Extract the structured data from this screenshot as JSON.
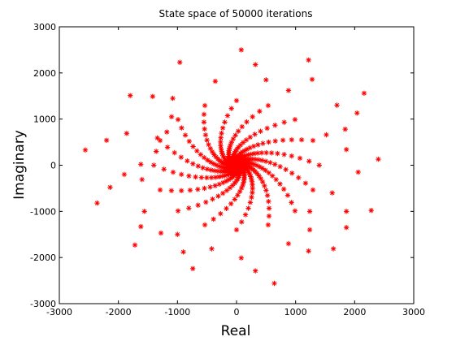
{
  "chart_data": {
    "type": "scatter",
    "title": "State space of 50000 iterations",
    "xlabel": "Real",
    "ylabel": "Imaginary",
    "xlim": [
      -3000,
      3000
    ],
    "ylim": [
      -3000,
      3000
    ],
    "xticks": [
      -3000,
      -2000,
      -1000,
      0,
      1000,
      2000,
      3000
    ],
    "yticks": [
      -3000,
      -2000,
      -1000,
      0,
      1000,
      2000,
      3000
    ],
    "xtick_labels": [
      "-3000",
      "-2000",
      "-1000",
      "0",
      "1000",
      "2000",
      "3000"
    ],
    "ytick_labels": [
      "-3000",
      "-2000",
      "-1000",
      "0",
      "1000",
      "2000",
      "3000"
    ],
    "grid": false,
    "marker": "asterisk",
    "color": "#ff0000",
    "spiral_arms": 16,
    "points": [
      [
        80,
        2500
      ],
      [
        320,
        2180
      ],
      [
        -960,
        2230
      ],
      [
        1220,
        2280
      ],
      [
        2160,
        1560
      ],
      [
        -1800,
        1510
      ],
      [
        -1420,
        1490
      ],
      [
        -1080,
        1450
      ],
      [
        -360,
        1820
      ],
      [
        500,
        1850
      ],
      [
        880,
        1620
      ],
      [
        1280,
        1860
      ],
      [
        2040,
        1130
      ],
      [
        2400,
        130
      ],
      [
        -2560,
        330
      ],
      [
        -2360,
        -820
      ],
      [
        -2200,
        540
      ],
      [
        -1620,
        20
      ],
      [
        -1600,
        -310
      ],
      [
        -1560,
        -1000
      ],
      [
        -1620,
        -1330
      ],
      [
        -1720,
        -1730
      ],
      [
        -1280,
        -1470
      ],
      [
        -1000,
        -1500
      ],
      [
        -900,
        -1880
      ],
      [
        -740,
        -2240
      ],
      [
        -420,
        -1810
      ],
      [
        80,
        -2010
      ],
      [
        320,
        -2290
      ],
      [
        640,
        -2560
      ],
      [
        880,
        -1700
      ],
      [
        1220,
        -1860
      ],
      [
        1240,
        -1400
      ],
      [
        1640,
        -1810
      ],
      [
        1860,
        -1350
      ],
      [
        2280,
        -980
      ],
      [
        1860,
        -1000
      ],
      [
        1240,
        -1000
      ],
      [
        1860,
        340
      ],
      [
        2060,
        -150
      ],
      [
        1840,
        780
      ],
      [
        1520,
        660
      ],
      [
        1700,
        1300
      ],
      [
        1620,
        -600
      ],
      [
        -1900,
        -200
      ],
      [
        -1860,
        690
      ],
      [
        -2140,
        -480
      ],
      [
        -1100,
        1050
      ],
      [
        -1180,
        720
      ],
      [
        -1340,
        590
      ],
      [
        -1360,
        300
      ]
    ]
  }
}
